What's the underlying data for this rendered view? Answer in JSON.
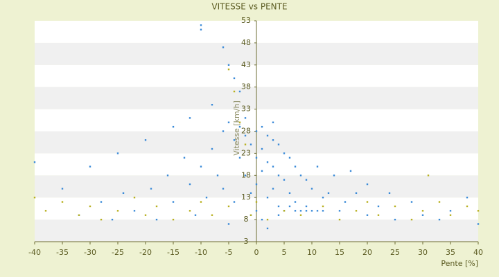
{
  "chart_data": {
    "type": "scatter",
    "title": "VITESSE vs PENTE",
    "xlabel": "Pente [%]",
    "ylabel": "Vitesse [km/h]",
    "xlim": [
      -40,
      40
    ],
    "ylim": [
      3,
      53
    ],
    "xticks": [
      -40,
      -35,
      -30,
      -25,
      -20,
      -15,
      -10,
      -5,
      0,
      5,
      10,
      15,
      20,
      25,
      30,
      35,
      40
    ],
    "yticks": [
      3,
      8,
      13,
      18,
      23,
      28,
      33,
      38,
      43,
      48,
      53
    ],
    "series": [
      {
        "color": "#3a8ad8",
        "x": [
          -10,
          -10,
          -6,
          -5,
          -4,
          -3,
          -8,
          -12,
          -15,
          -20,
          -25,
          -30,
          -40,
          -35,
          -28,
          -22,
          -18,
          -15,
          -12,
          -10,
          -8,
          -6,
          -5,
          -4,
          -3,
          -2,
          -1,
          0,
          0,
          0,
          0,
          1,
          1,
          1,
          2,
          2,
          2,
          3,
          3,
          3,
          4,
          4,
          4,
          5,
          5,
          5,
          6,
          6,
          7,
          7,
          8,
          8,
          9,
          9,
          10,
          10,
          11,
          12,
          12,
          14,
          15,
          16,
          18,
          20,
          22,
          25,
          28,
          30,
          33,
          35,
          38,
          40,
          -2,
          -3,
          -1,
          -7,
          -9,
          -11,
          -13,
          -16,
          -19,
          -24,
          -26,
          -32,
          13,
          6,
          4,
          7,
          9,
          11,
          -1,
          1,
          -5,
          2,
          17,
          20,
          24,
          -4,
          -6,
          3,
          -2
        ],
        "values": [
          52,
          51,
          47,
          43,
          40,
          37,
          34,
          31,
          29,
          26,
          23,
          20,
          21,
          15,
          12,
          10,
          8,
          12,
          16,
          20,
          24,
          28,
          30,
          26,
          22,
          18,
          14,
          28,
          22,
          16,
          10,
          29,
          24,
          19,
          27,
          21,
          13,
          26,
          20,
          15,
          25,
          18,
          11,
          23,
          17,
          10,
          22,
          14,
          20,
          10,
          18,
          10,
          17,
          11,
          15,
          10,
          20,
          13,
          10,
          18,
          10,
          12,
          14,
          9,
          11,
          8,
          12,
          9,
          8,
          10,
          13,
          7,
          27,
          29,
          25,
          18,
          13,
          9,
          22,
          18,
          15,
          14,
          8,
          9,
          14,
          11,
          9,
          12,
          10,
          10,
          9,
          8,
          7,
          6,
          19,
          16,
          14,
          12,
          15,
          30,
          31
        ]
      },
      {
        "color": "#b8b020",
        "x": [
          -40,
          -38,
          -35,
          -32,
          -30,
          -28,
          -25,
          -22,
          -20,
          -18,
          -15,
          -12,
          -10,
          -8,
          -5,
          -4,
          -5,
          -3,
          -2,
          -1,
          0,
          2,
          5,
          8,
          12,
          15,
          18,
          20,
          22,
          25,
          28,
          30,
          31,
          33,
          35,
          38,
          40
        ],
        "values": [
          13,
          10,
          12,
          9,
          11,
          8,
          10,
          13,
          9,
          11,
          8,
          10,
          12,
          9,
          11,
          37,
          42,
          30,
          25,
          9,
          12,
          8,
          10,
          9,
          11,
          8,
          10,
          12,
          9,
          11,
          8,
          10,
          18,
          12,
          9,
          11,
          10
        ]
      }
    ]
  }
}
